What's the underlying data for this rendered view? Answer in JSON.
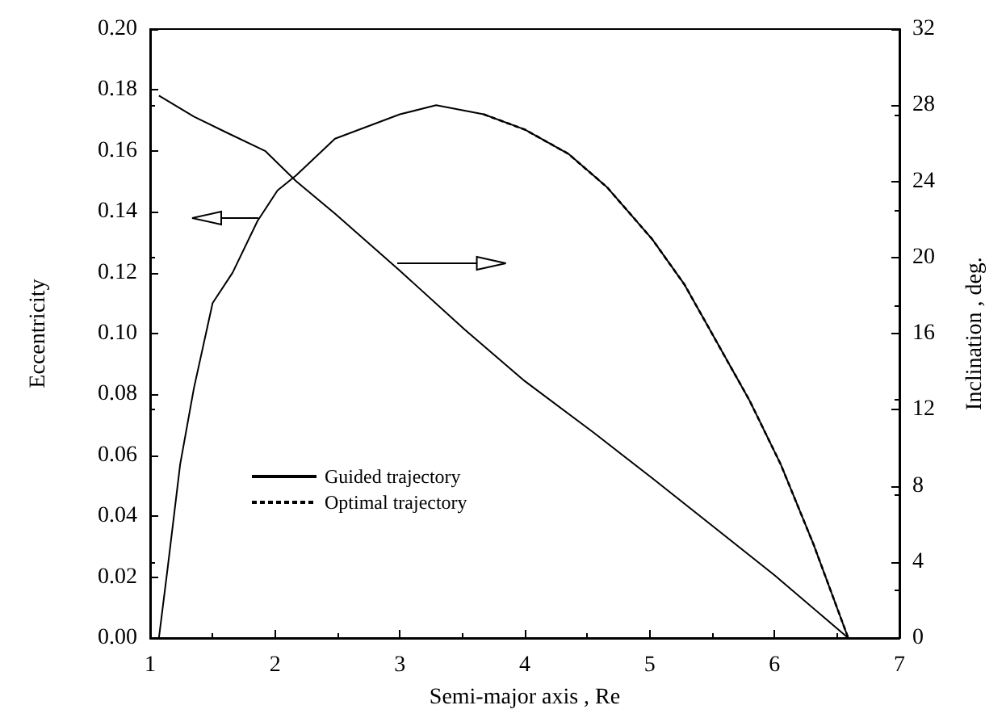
{
  "chart_data": {
    "type": "line",
    "xlabel": "Semi-major axis , Re",
    "ylabel": "Eccentricity",
    "y2label": "Inclination , deg.",
    "xlim": [
      1,
      7
    ],
    "xticks": [
      1,
      2,
      3,
      4,
      5,
      6,
      7
    ],
    "ylim": [
      0,
      0.2
    ],
    "yticks": [
      {
        "value": 0,
        "label": "0.00"
      },
      0.02,
      0.04,
      0.06,
      0.08,
      {
        "value": 0.1,
        "label": "0.10"
      },
      0.12,
      0.14,
      0.16,
      0.18,
      {
        "value": 0.2,
        "label": "0.20"
      }
    ],
    "y2lim": [
      0,
      32
    ],
    "y2ticks": [
      0,
      4,
      8,
      12,
      16,
      20,
      24,
      28,
      32
    ],
    "legend": "bottom left",
    "grid": false,
    "marker": "none",
    "series": [
      {
        "name": "Guided trajectory",
        "color": "#000000",
        "line_style": "solid",
        "x": [
          1.07,
          1.14,
          1.24,
          1.35,
          1.5,
          1.66,
          1.86,
          2.02,
          2.17,
          2.48,
          3.0,
          3.29,
          3.67,
          4.0,
          4.35,
          4.66,
          5.02,
          5.28,
          5.54,
          5.8,
          6.05,
          6.31,
          6.59
        ],
        "values": [
          0,
          0.023,
          0.057,
          0.082,
          0.11,
          0.12,
          0.137,
          0.147,
          0.152,
          0.164,
          0.172,
          0.175,
          0.172,
          0.167,
          0.159,
          0.148,
          0.131,
          0.116,
          0.097,
          0.078,
          0.057,
          0.031,
          0
        ]
      },
      {
        "name": "Optimal trajectory",
        "color": "#000000",
        "line_style": "dashed",
        "x": [
          3.67,
          4.0,
          4.35,
          4.66,
          5.02,
          5.28,
          5.54,
          5.8,
          6.05,
          6.31,
          6.59
        ],
        "values": [
          0.172,
          0.167,
          0.159,
          0.148,
          0.131,
          0.116,
          0.097,
          0.078,
          0.057,
          0.031,
          0
        ]
      },
      {
        "color": "#000000",
        "line_style": "solid",
        "axis": "y2",
        "x": [
          1.07,
          1.35,
          1.6,
          1.92,
          2.17,
          2.48,
          3.0,
          3.52,
          4.0,
          4.55,
          5.02,
          5.54,
          6.0,
          6.59
        ],
        "values": [
          28.5,
          27.4,
          26.6,
          25.6,
          24.0,
          22.3,
          19.3,
          16.2,
          13.5,
          10.8,
          8.4,
          5.7,
          3.3,
          0
        ]
      }
    ]
  }
}
